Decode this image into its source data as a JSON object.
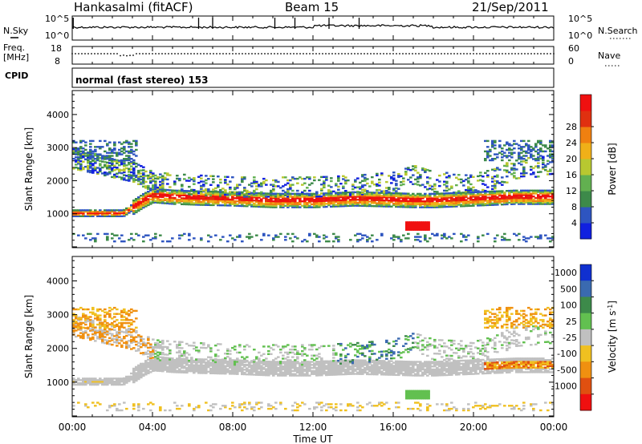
{
  "header": {
    "station": "Hankasalmi (fitACF)",
    "beam": "Beam 15",
    "date": "21/Sep/2011"
  },
  "panels": {
    "nsky": {
      "left_label": "N.Sky",
      "left_ticks": [
        "10^5",
        "10^0"
      ],
      "right_label": "N.Search",
      "right_ticks": [
        "10^5",
        "10^0"
      ]
    },
    "freq": {
      "left_label_1": "Freq.",
      "left_label_2": "[MHz]",
      "left_ticks": [
        "18",
        "8"
      ],
      "right_label": "Nave",
      "right_ticks": [
        "60",
        "0"
      ]
    },
    "cpid": {
      "label": "CPID",
      "text": "normal (fast stereo) 153"
    }
  },
  "chart_data": [
    {
      "type": "heatmap",
      "title": "Power",
      "xlabel": "Time UT",
      "ylabel": "Slant Range [km]",
      "xlim": [
        "00:00",
        "24:00"
      ],
      "ylim": [
        0,
        4700
      ],
      "x_ticks": [
        "00:00",
        "04:00",
        "08:00",
        "12:00",
        "16:00",
        "20:00",
        "00:00"
      ],
      "y_ticks": [
        1000,
        2000,
        3000,
        4000
      ],
      "colorbar": {
        "label": "Power [dB]",
        "ticks": [
          "4",
          "8",
          "12",
          "16",
          "20",
          "24",
          "28"
        ],
        "colors": [
          "#1020e0",
          "#2e55c0",
          "#3d8a4a",
          "#62b050",
          "#b8c830",
          "#f0b018",
          "#f08010",
          "#e03010",
          "#f01010"
        ]
      },
      "echo_bands": [
        {
          "name": "main",
          "points": [
            [
              0.0,
              1000
            ],
            [
              1.5,
              1000
            ],
            [
              2.5,
              1000
            ],
            [
              3.5,
              1400
            ],
            [
              4.0,
              1550
            ],
            [
              5.0,
              1500
            ],
            [
              6.0,
              1480
            ],
            [
              8.0,
              1450
            ],
            [
              10.0,
              1400
            ],
            [
              12.0,
              1400
            ],
            [
              14.0,
              1450
            ],
            [
              16.0,
              1420
            ],
            [
              17.0,
              1400
            ],
            [
              18.0,
              1400
            ],
            [
              20.0,
              1450
            ],
            [
              22.0,
              1500
            ],
            [
              24.0,
              1500
            ]
          ],
          "dominant_power_db": 26
        },
        {
          "name": "upper",
          "points": [
            [
              0.0,
              2600
            ],
            [
              1.5,
              2400
            ],
            [
              3.0,
              2200
            ],
            [
              4.0,
              1900
            ],
            [
              5.0,
              1850
            ],
            [
              8.0,
              1750
            ],
            [
              12.0,
              1750
            ],
            [
              14.0,
              1800
            ],
            [
              16.0,
              1900
            ],
            [
              17.0,
              2100
            ],
            [
              18.0,
              1900
            ],
            [
              20.0,
              1850
            ],
            [
              21.0,
              2000
            ],
            [
              22.0,
              2300
            ],
            [
              24.0,
              2400
            ]
          ],
          "dominant_power_db": 10
        },
        {
          "name": "late-low",
          "points": [
            [
              16.6,
              600
            ],
            [
              17.8,
              600
            ]
          ],
          "dominant_power_db": 28
        }
      ]
    },
    {
      "type": "heatmap",
      "title": "Velocity",
      "xlabel": "Time UT",
      "ylabel": "Slant Range [km]",
      "xlim": [
        "00:00",
        "24:00"
      ],
      "ylim": [
        0,
        4700
      ],
      "x_ticks": [
        "00:00",
        "04:00",
        "08:00",
        "12:00",
        "16:00",
        "20:00",
        "00:00"
      ],
      "y_ticks": [
        1000,
        2000,
        3000,
        4000
      ],
      "colorbar": {
        "label": "Velocity [m s",
        "label_sup": "-1",
        "label_end": "]",
        "ticks": [
          "1000",
          "500",
          "100",
          "25",
          "-25",
          "-100",
          "-500",
          "-1000"
        ],
        "colors": [
          "#1030d0",
          "#3a6ab0",
          "#3d8a4a",
          "#62c050",
          "#c0c0c0",
          "#f0c020",
          "#f09010",
          "#e05010",
          "#f01010"
        ]
      },
      "echo_bands": [
        {
          "name": "main",
          "points": [
            [
              0.0,
              1000
            ],
            [
              1.5,
              1000
            ],
            [
              2.5,
              1000
            ],
            [
              3.5,
              1400
            ],
            [
              4.0,
              1550
            ],
            [
              5.0,
              1500
            ],
            [
              6.0,
              1480
            ],
            [
              8.0,
              1450
            ],
            [
              10.0,
              1400
            ],
            [
              12.0,
              1400
            ],
            [
              14.0,
              1450
            ],
            [
              16.0,
              1420
            ],
            [
              17.0,
              1400
            ],
            [
              18.0,
              1400
            ],
            [
              20.0,
              1450
            ],
            [
              22.0,
              1500
            ],
            [
              24.0,
              1500
            ]
          ],
          "dominant_velocity": 0
        },
        {
          "name": "upper",
          "points": [
            [
              0.0,
              2600
            ],
            [
              1.5,
              2400
            ],
            [
              3.0,
              2200
            ],
            [
              4.0,
              1900
            ],
            [
              5.0,
              1850
            ],
            [
              8.0,
              1750
            ],
            [
              12.0,
              1750
            ],
            [
              14.0,
              1800
            ],
            [
              16.0,
              1900
            ],
            [
              17.0,
              2100
            ],
            [
              18.0,
              1900
            ],
            [
              20.0,
              1850
            ],
            [
              21.0,
              2000
            ],
            [
              22.0,
              2300
            ],
            [
              24.0,
              2400
            ]
          ],
          "dominant_velocity": 0
        },
        {
          "name": "late-low",
          "points": [
            [
              16.6,
              600
            ],
            [
              17.8,
              600
            ]
          ],
          "dominant_velocity": 150
        }
      ]
    }
  ]
}
